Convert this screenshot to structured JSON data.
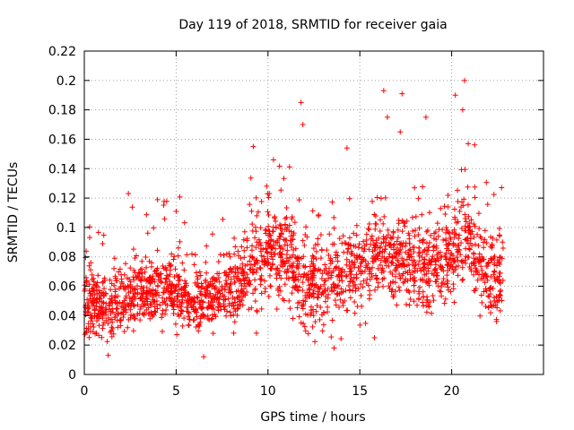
{
  "chart_data": {
    "type": "scatter",
    "title": "Day 119 of 2018, SRMTID for receiver gaia",
    "xlabel": "GPS time / hours",
    "ylabel": "SRMTID / TECUs",
    "xlim": [
      0,
      25
    ],
    "ylim": [
      0,
      0.22
    ],
    "xticks": [
      0,
      5,
      10,
      15,
      20
    ],
    "xtick_labels": [
      "0",
      "5",
      "10",
      "15",
      "20"
    ],
    "yticks": [
      0,
      0.02,
      0.04,
      0.06,
      0.08,
      0.1,
      0.12,
      0.14,
      0.16,
      0.18,
      0.2,
      0.22
    ],
    "ytick_labels": [
      "0",
      "0.02",
      "0.04",
      "0.06",
      "0.08",
      "0.1",
      "0.12",
      "0.14",
      "0.16",
      "0.18",
      "0.2",
      "0.22"
    ],
    "grid": true,
    "marker": "+",
    "series": [
      {
        "name": "SRMTID",
        "color": "#ff0000",
        "x_range": [
          0,
          22.8
        ],
        "trend": [
          {
            "x": 0,
            "y": 0.05
          },
          {
            "x": 1,
            "y": 0.045
          },
          {
            "x": 2,
            "y": 0.05
          },
          {
            "x": 3,
            "y": 0.058
          },
          {
            "x": 4,
            "y": 0.06
          },
          {
            "x": 5,
            "y": 0.055
          },
          {
            "x": 6,
            "y": 0.05
          },
          {
            "x": 7,
            "y": 0.055
          },
          {
            "x": 8,
            "y": 0.058
          },
          {
            "x": 9,
            "y": 0.07
          },
          {
            "x": 10,
            "y": 0.085
          },
          {
            "x": 11,
            "y": 0.08
          },
          {
            "x": 12,
            "y": 0.06
          },
          {
            "x": 13,
            "y": 0.06
          },
          {
            "x": 14,
            "y": 0.07
          },
          {
            "x": 15,
            "y": 0.075
          },
          {
            "x": 16,
            "y": 0.08
          },
          {
            "x": 17,
            "y": 0.08
          },
          {
            "x": 18,
            "y": 0.075
          },
          {
            "x": 19,
            "y": 0.07
          },
          {
            "x": 20,
            "y": 0.085
          },
          {
            "x": 21,
            "y": 0.09
          },
          {
            "x": 22,
            "y": 0.065
          },
          {
            "x": 22.8,
            "y": 0.065
          }
        ],
        "notable_points": [
          {
            "x": 2.4,
            "y": 0.123
          },
          {
            "x": 5.0,
            "y": 0.111
          },
          {
            "x": 9.2,
            "y": 0.155
          },
          {
            "x": 10.3,
            "y": 0.146
          },
          {
            "x": 11.8,
            "y": 0.185
          },
          {
            "x": 11.9,
            "y": 0.17
          },
          {
            "x": 14.3,
            "y": 0.154
          },
          {
            "x": 16.3,
            "y": 0.193
          },
          {
            "x": 16.5,
            "y": 0.175
          },
          {
            "x": 17.3,
            "y": 0.191
          },
          {
            "x": 17.2,
            "y": 0.165
          },
          {
            "x": 18.6,
            "y": 0.175
          },
          {
            "x": 20.2,
            "y": 0.19
          },
          {
            "x": 20.7,
            "y": 0.2
          },
          {
            "x": 20.6,
            "y": 0.18
          },
          {
            "x": 20.9,
            "y": 0.157
          },
          {
            "x": 1.3,
            "y": 0.013
          },
          {
            "x": 6.5,
            "y": 0.012
          },
          {
            "x": 13.6,
            "y": 0.018
          },
          {
            "x": 15.8,
            "y": 0.025
          }
        ]
      }
    ]
  }
}
